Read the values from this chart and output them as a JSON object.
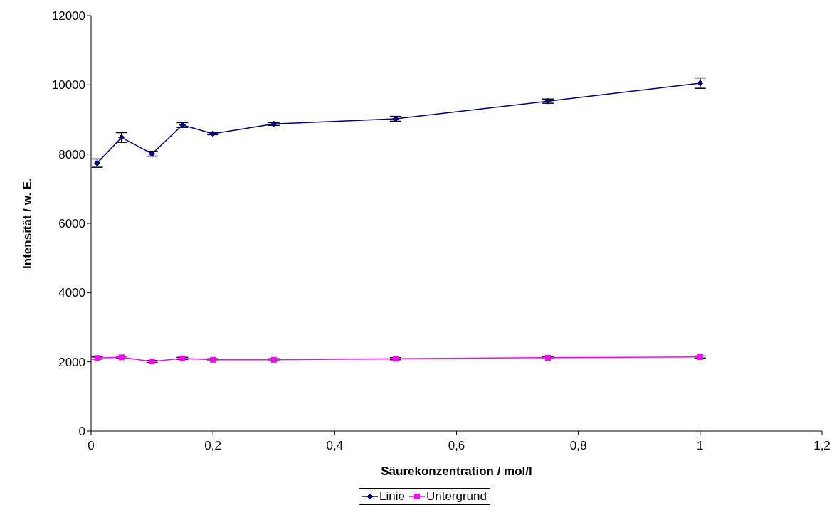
{
  "chart_data": {
    "type": "line",
    "xlabel": "Säurekonzentration / mol/l",
    "ylabel": "Intensität / w. E.",
    "x": [
      0.01,
      0.05,
      0.1,
      0.15,
      0.2,
      0.3,
      0.5,
      0.75,
      1.0
    ],
    "series": [
      {
        "name": "Linie",
        "color": "#000080",
        "marker": "diamond",
        "values": [
          7740,
          8480,
          8010,
          8840,
          8590,
          8870,
          9020,
          9530,
          10050
        ],
        "errors": [
          120,
          140,
          70,
          70,
          30,
          40,
          70,
          60,
          150
        ]
      },
      {
        "name": "Untergrund",
        "color": "#ff00ff",
        "marker": "square",
        "values": [
          2110,
          2130,
          2010,
          2100,
          2060,
          2060,
          2090,
          2120,
          2140
        ],
        "errors": [
          30,
          30,
          30,
          30,
          30,
          30,
          30,
          30,
          30
        ]
      }
    ],
    "xlim": [
      0,
      1.2
    ],
    "xticks": [
      0,
      {
        "value": 0.2,
        "label": "0,2"
      },
      {
        "value": 0.4,
        "label": "0,4"
      },
      {
        "value": 0.6,
        "label": "0,6"
      },
      {
        "value": 0.8,
        "label": "0,8"
      },
      {
        "value": 1,
        "label": "1"
      },
      {
        "value": 1.2,
        "label": "1,2"
      }
    ],
    "ylim": [
      0,
      12000
    ],
    "yticks": [
      0,
      2000,
      4000,
      6000,
      8000,
      10000,
      12000
    ],
    "grid": false,
    "legend": "bottom",
    "line_style": "solid"
  }
}
